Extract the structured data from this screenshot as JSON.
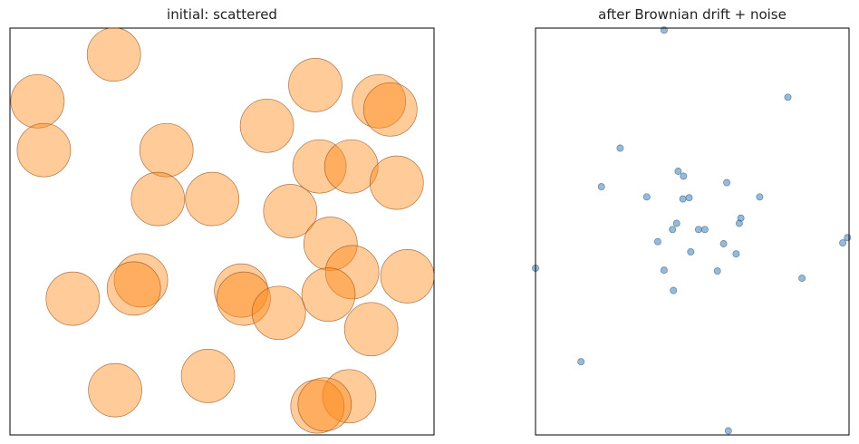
{
  "chart_data": [
    {
      "type": "scatter",
      "title": "initial: scattered",
      "xlim": [
        0,
        1
      ],
      "ylim": [
        0,
        1
      ],
      "ticks": "hidden",
      "grid": false,
      "marker_color": "#ff8c1a",
      "marker_alpha": 0.45,
      "marker_edge": "#8b4513",
      "marker_size": "large",
      "points": [
        {
          "x": 0.245,
          "y": 0.935
        },
        {
          "x": 0.065,
          "y": 0.82
        },
        {
          "x": 0.08,
          "y": 0.7
        },
        {
          "x": 0.72,
          "y": 0.86
        },
        {
          "x": 0.87,
          "y": 0.82
        },
        {
          "x": 0.897,
          "y": 0.8
        },
        {
          "x": 0.606,
          "y": 0.76
        },
        {
          "x": 0.369,
          "y": 0.7
        },
        {
          "x": 0.73,
          "y": 0.66
        },
        {
          "x": 0.805,
          "y": 0.66
        },
        {
          "x": 0.912,
          "y": 0.62
        },
        {
          "x": 0.349,
          "y": 0.58
        },
        {
          "x": 0.477,
          "y": 0.58
        },
        {
          "x": 0.661,
          "y": 0.55
        },
        {
          "x": 0.756,
          "y": 0.47
        },
        {
          "x": 0.309,
          "y": 0.38
        },
        {
          "x": 0.807,
          "y": 0.4
        },
        {
          "x": 0.937,
          "y": 0.39
        },
        {
          "x": 0.292,
          "y": 0.36
        },
        {
          "x": 0.545,
          "y": 0.355
        },
        {
          "x": 0.551,
          "y": 0.335
        },
        {
          "x": 0.148,
          "y": 0.335
        },
        {
          "x": 0.751,
          "y": 0.345
        },
        {
          "x": 0.634,
          "y": 0.3
        },
        {
          "x": 0.852,
          "y": 0.26
        },
        {
          "x": 0.467,
          "y": 0.145
        },
        {
          "x": 0.248,
          "y": 0.11
        },
        {
          "x": 0.8,
          "y": 0.095
        },
        {
          "x": 0.725,
          "y": 0.07
        },
        {
          "x": 0.742,
          "y": 0.075
        }
      ]
    },
    {
      "type": "scatter",
      "title": "after Brownian drift + noise",
      "xlim": [
        0,
        1
      ],
      "ylim": [
        0,
        1
      ],
      "ticks": "hidden",
      "grid": false,
      "marker_color": "#4682b4",
      "marker_alpha": 0.55,
      "marker_edge": "#2f5f88",
      "marker_size": "small",
      "points": [
        {
          "x": 0.41,
          "y": 0.995
        },
        {
          "x": 0.805,
          "y": 0.83
        },
        {
          "x": 0.27,
          "y": 0.705
        },
        {
          "x": 0.455,
          "y": 0.648
        },
        {
          "x": 0.472,
          "y": 0.636
        },
        {
          "x": 0.21,
          "y": 0.61
        },
        {
          "x": 0.61,
          "y": 0.62
        },
        {
          "x": 0.355,
          "y": 0.585
        },
        {
          "x": 0.47,
          "y": 0.58
        },
        {
          "x": 0.49,
          "y": 0.583
        },
        {
          "x": 0.715,
          "y": 0.585
        },
        {
          "x": 0.655,
          "y": 0.533
        },
        {
          "x": 0.45,
          "y": 0.52
        },
        {
          "x": 0.65,
          "y": 0.52
        },
        {
          "x": 0.437,
          "y": 0.505
        },
        {
          "x": 0.52,
          "y": 0.505
        },
        {
          "x": 0.54,
          "y": 0.505
        },
        {
          "x": 0.39,
          "y": 0.475
        },
        {
          "x": 0.6,
          "y": 0.47
        },
        {
          "x": 0.495,
          "y": 0.45
        },
        {
          "x": 0.64,
          "y": 0.445
        },
        {
          "x": 0.995,
          "y": 0.485
        },
        {
          "x": 0.98,
          "y": 0.472
        },
        {
          "x": 0.0,
          "y": 0.41
        },
        {
          "x": 0.41,
          "y": 0.405
        },
        {
          "x": 0.58,
          "y": 0.403
        },
        {
          "x": 0.85,
          "y": 0.385
        },
        {
          "x": 0.44,
          "y": 0.355
        },
        {
          "x": 0.145,
          "y": 0.18
        },
        {
          "x": 0.615,
          "y": 0.01
        }
      ]
    }
  ]
}
